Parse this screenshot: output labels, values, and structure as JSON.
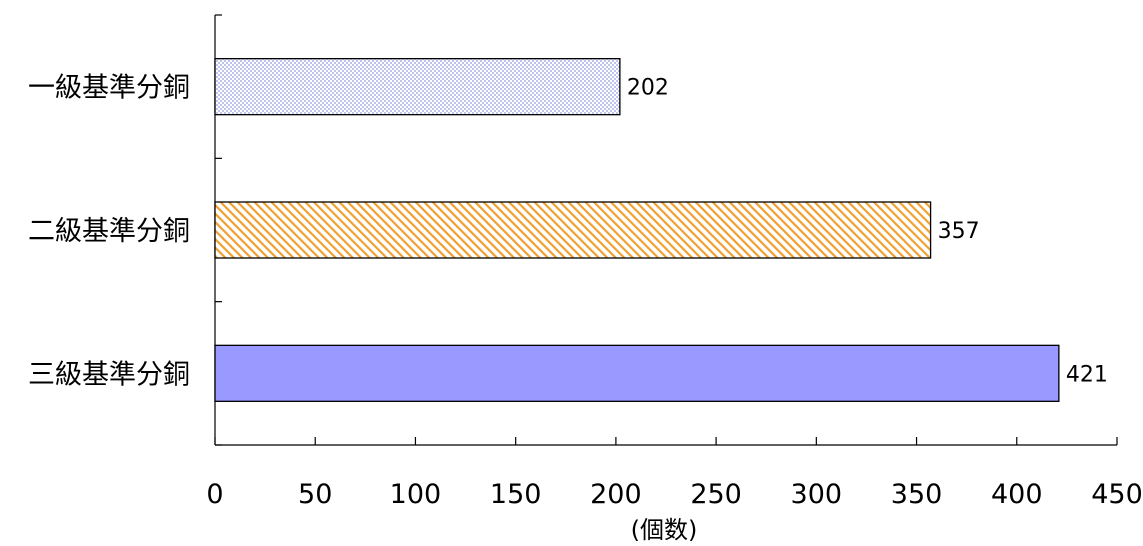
{
  "chart_data": {
    "type": "bar",
    "orientation": "horizontal",
    "categories": [
      "一級基準分銅",
      "二級基準分銅",
      "三級基準分銅"
    ],
    "values": [
      202,
      357,
      421
    ],
    "value_labels": [
      "202",
      "357",
      "421"
    ],
    "xlabel": "(個数)",
    "ylabel": "",
    "xlim": [
      0,
      450
    ],
    "x_ticks": [
      "0",
      "50",
      "100",
      "150",
      "200",
      "250",
      "300",
      "350",
      "400",
      "450"
    ],
    "grid": false,
    "legend": "none",
    "bar_styles": [
      {
        "fill": "dotted",
        "color": "#9aa6e6"
      },
      {
        "fill": "diagonal-hatch",
        "color": "#f0a030"
      },
      {
        "fill": "solid",
        "color": "#9999ff"
      }
    ]
  }
}
